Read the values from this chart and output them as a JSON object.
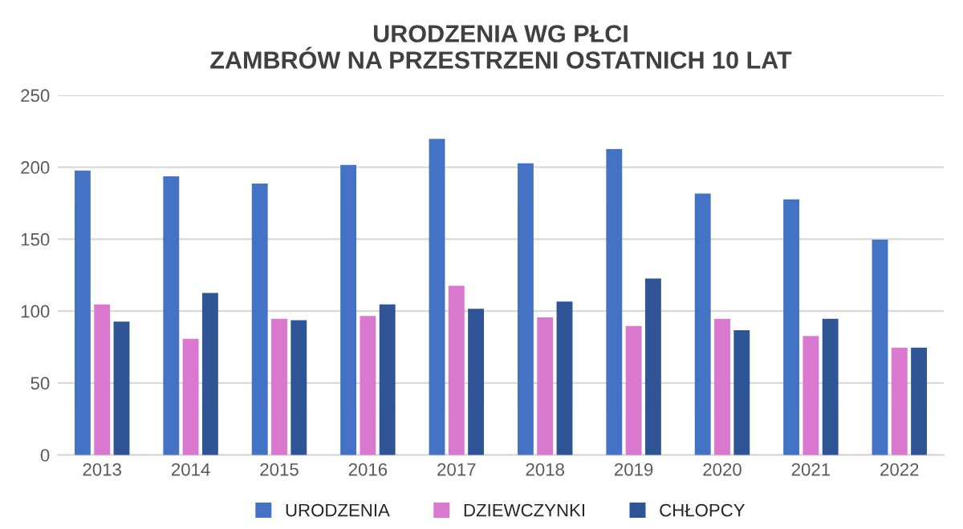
{
  "chart_data": {
    "type": "bar",
    "title": "URODZENIA WG PŁCI\nZAMBRÓW NA PRZESTRZENI OSTATNICH 10 LAT",
    "categories": [
      "2013",
      "2014",
      "2015",
      "2016",
      "2017",
      "2018",
      "2019",
      "2020",
      "2021",
      "2022"
    ],
    "series": [
      {
        "name": "URODZENIA",
        "color": "#4472c4",
        "values": [
          197,
          193,
          188,
          201,
          219,
          202,
          212,
          181,
          177,
          149
        ]
      },
      {
        "name": "DZIEWCZYNKI",
        "color": "#da78cf",
        "values": [
          104,
          80,
          94,
          96,
          117,
          95,
          89,
          94,
          82,
          74
        ]
      },
      {
        "name": "CHŁOPCY",
        "color": "#2f5597",
        "values": [
          92,
          112,
          93,
          104,
          101,
          106,
          122,
          86,
          94,
          74
        ]
      }
    ],
    "ylim": [
      0,
      250
    ],
    "yticks": [
      0,
      50,
      100,
      150,
      200,
      250
    ],
    "grid": "y",
    "legend": "bottom"
  }
}
